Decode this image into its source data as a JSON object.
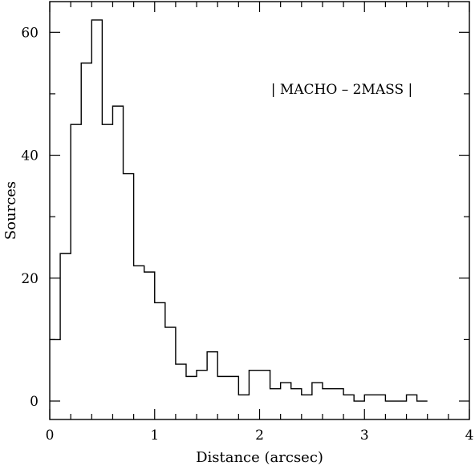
{
  "chart_data": {
    "type": "bar",
    "subtype": "step-histogram",
    "xlabel": "Distance (arcsec)",
    "ylabel": "Sources",
    "annotation": "| MACHO – 2MASS |",
    "xlim": [
      0,
      4
    ],
    "ylim": [
      -3,
      65
    ],
    "xticks": [
      0,
      1,
      2,
      3,
      4
    ],
    "yticks": [
      0,
      20,
      40,
      60
    ],
    "x_minor_step": 0.2,
    "y_minor_step": 10,
    "grid": false,
    "legend": "none",
    "bin_width": 0.1,
    "bins_start": [
      0.0,
      0.1,
      0.2,
      0.3,
      0.4,
      0.5,
      0.6,
      0.7,
      0.8,
      0.9,
      1.0,
      1.1,
      1.2,
      1.3,
      1.4,
      1.5,
      1.6,
      1.7,
      1.8,
      1.9,
      2.0,
      2.1,
      2.2,
      2.3,
      2.4,
      2.5,
      2.6,
      2.7,
      2.8,
      2.9,
      3.0,
      3.1,
      3.2,
      3.3,
      3.4,
      3.5
    ],
    "values": [
      10,
      24,
      45,
      55,
      62,
      45,
      48,
      37,
      22,
      21,
      16,
      12,
      6,
      4,
      5,
      8,
      4,
      4,
      1,
      5,
      5,
      2,
      3,
      2,
      1,
      3,
      2,
      2,
      1,
      0,
      1,
      1,
      0,
      0,
      1,
      0
    ],
    "line_color": "#000000"
  }
}
